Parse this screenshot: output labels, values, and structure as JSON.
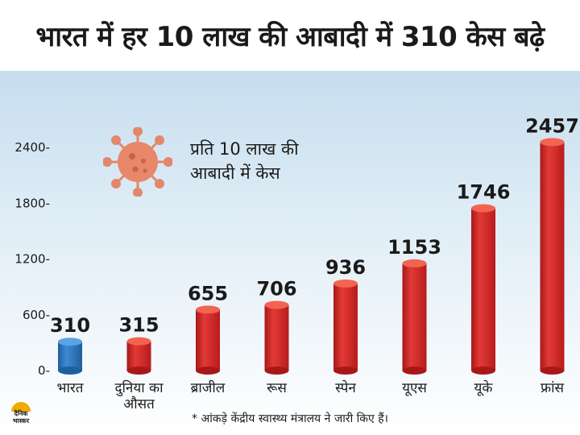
{
  "title": "भारत में हर 10 लाख की आबादी में 310 केस बढ़े",
  "legend": {
    "line1": "प्रति 10 लाख की",
    "line2": "आबादी में केस"
  },
  "footnote": "* आंकड़े केंद्रीय स्वास्थ्य मंत्रालय ने जारी किए हैं।",
  "logo": {
    "line1": "दैनिक",
    "line2": "भास्कर"
  },
  "colors": {
    "highlight": "#2a78c2",
    "bar": "#d52b2b",
    "logo_sun": "#f2a900"
  },
  "icons": {
    "legend": "virus-icon",
    "brand": "logo-sun-icon"
  },
  "chart_data": {
    "type": "bar",
    "title": "भारत में हर 10 लाख की आबादी में 310 केस बढ़े",
    "categories": [
      "भारत",
      "दुनिया का औसत",
      "ब्राजील",
      "रूस",
      "स्पेन",
      "यूएस",
      "यूके",
      "फ्रांस"
    ],
    "category_lines": [
      [
        "भारत"
      ],
      [
        "दुनिया का",
        "औसत"
      ],
      [
        "ब्राजील"
      ],
      [
        "रूस"
      ],
      [
        "स्पेन"
      ],
      [
        "यूएस"
      ],
      [
        "यूके"
      ],
      [
        "फ्रांस"
      ]
    ],
    "values": [
      310,
      315,
      655,
      706,
      936,
      1153,
      1746,
      2457
    ],
    "value_labels": [
      "310",
      "315",
      "655",
      "706",
      "936",
      "1153",
      "1746",
      "2457"
    ],
    "highlight_index": 0,
    "yticks": [
      0,
      600,
      1200,
      1800,
      2400
    ],
    "ytick_labels": [
      "0-",
      "600-",
      "1200-",
      "1800-",
      "2400-"
    ],
    "ylim": [
      0,
      2457
    ],
    "legend": "प्रति 10 लाख की आबादी में केस",
    "grid": false
  }
}
